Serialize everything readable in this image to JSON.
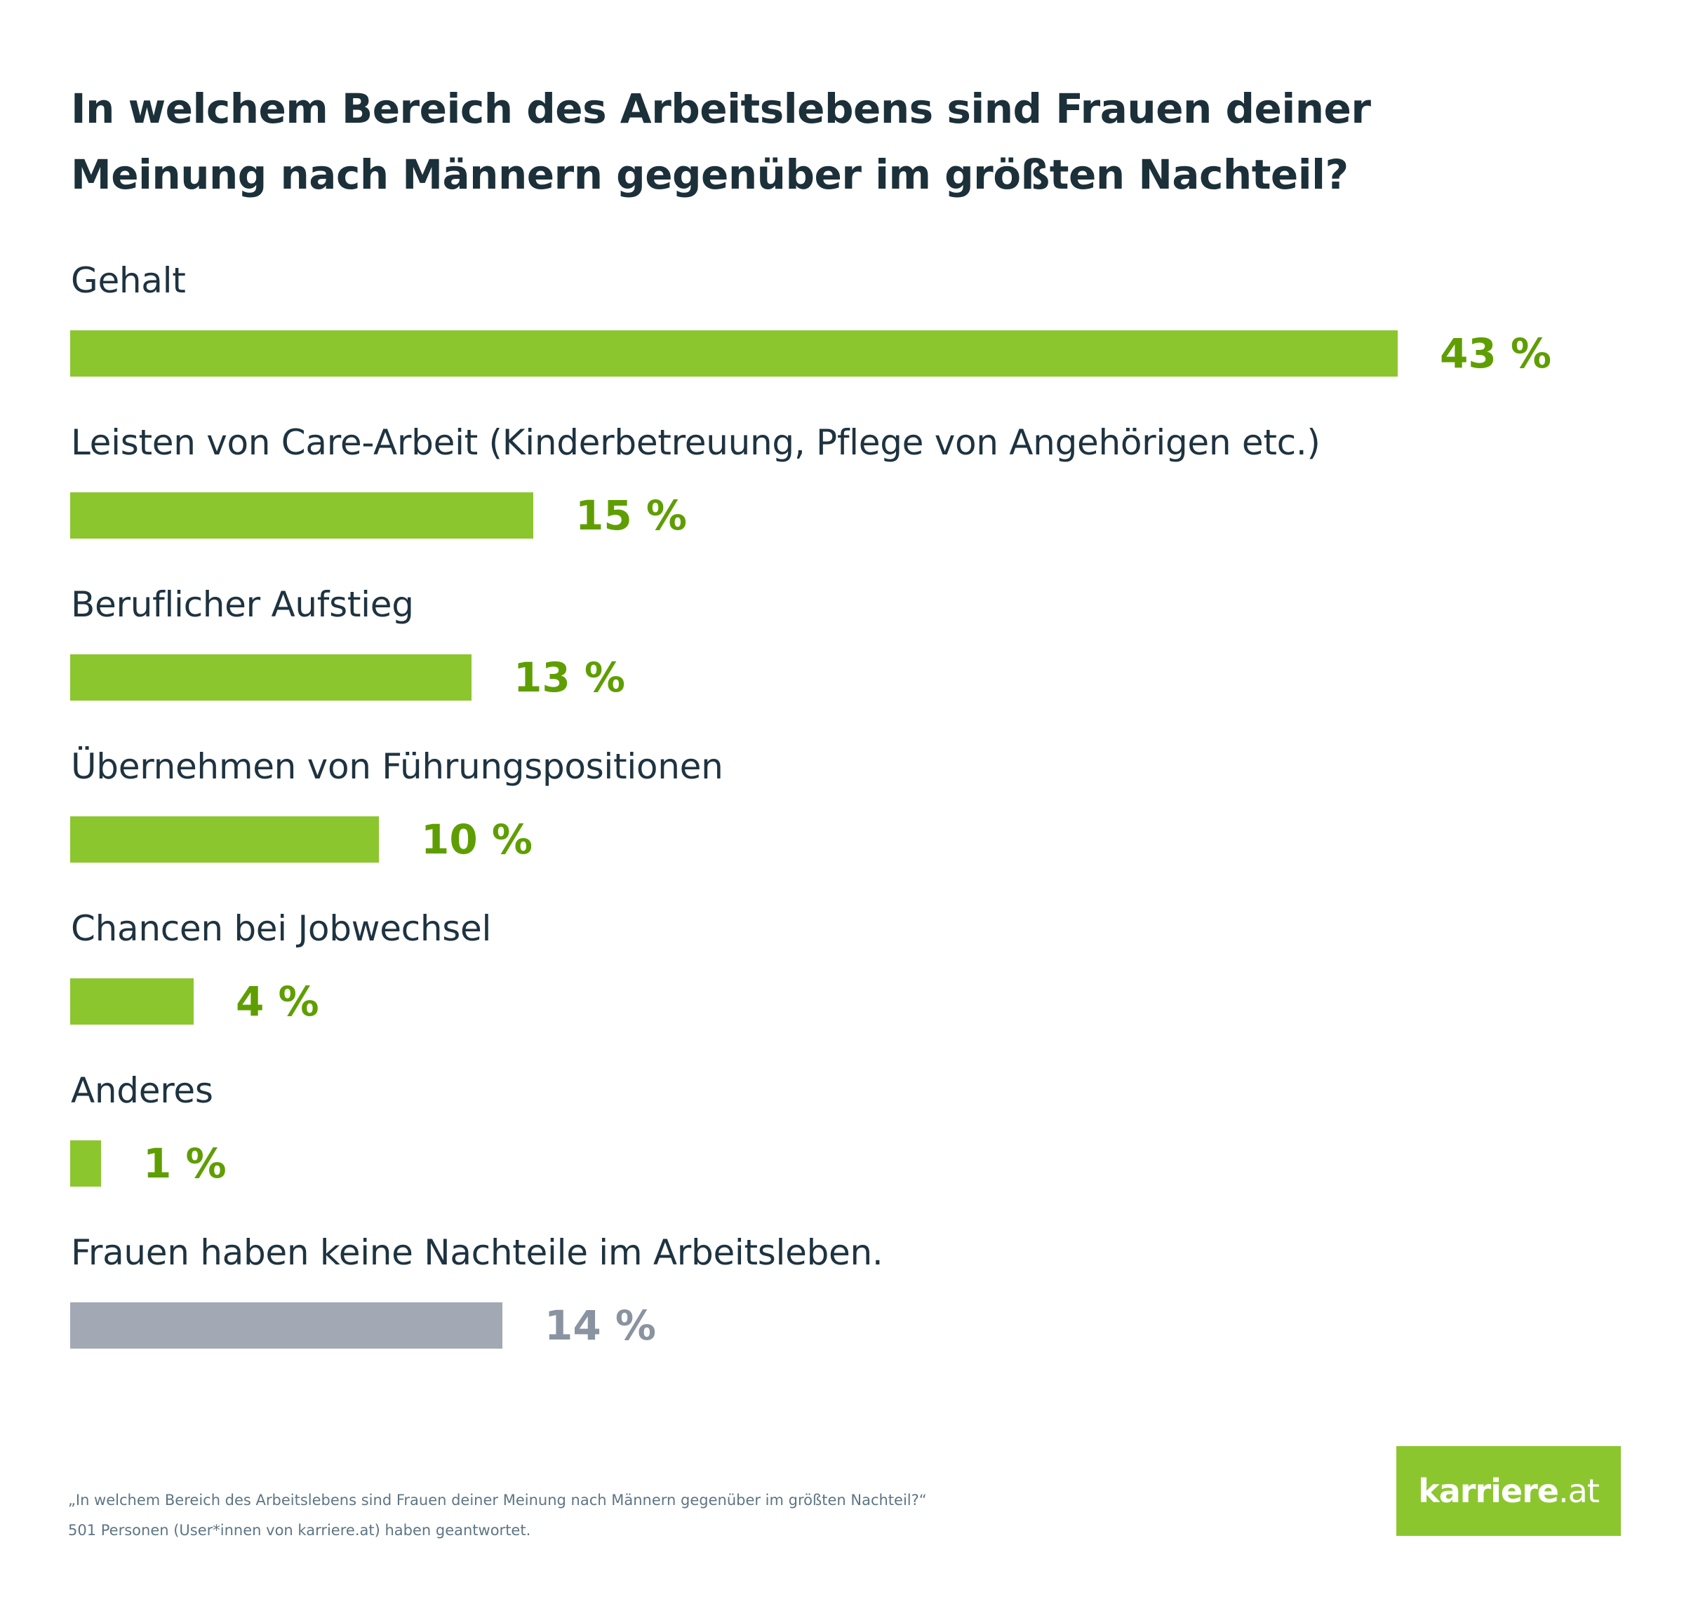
{
  "title": {
    "line1": "In welchem Bereich des Arbeitslebens sind Frauen deiner",
    "line2": "Meinung nach Männern gegenüber im größten Nachteil?"
  },
  "colors": {
    "bar_primary": "#8cc62e",
    "value_primary": "#5f9e00",
    "bar_secondary": "#a2a9b4",
    "value_secondary": "#8a93a0",
    "text": "#1e3340",
    "footer_text": "#5d7584"
  },
  "chart_data": {
    "type": "bar",
    "orientation": "horizontal",
    "title": "In welchem Bereich des Arbeitslebens sind Frauen deiner Meinung nach Männern gegenüber im größten Nachteil?",
    "xlabel": "",
    "ylabel": "",
    "unit": "%",
    "xlim": [
      0,
      43
    ],
    "grid": false,
    "categories": [
      "Gehalt",
      "Leisten von Care-Arbeit (Kinderbetreuung, Pflege von Angehörigen etc.)",
      "Beruflicher Aufstieg",
      "Übernehmen von Führungspositionen",
      "Chancen bei Jobwechsel",
      "Anderes",
      "Frauen haben keine Nachteile im Arbeitsleben."
    ],
    "values": [
      43,
      15,
      13,
      10,
      4,
      1,
      14
    ],
    "value_labels": [
      "43 %",
      "15 %",
      "13 %",
      "10 %",
      "4 %",
      "1 %",
      "14 %"
    ],
    "highlight": [
      "primary",
      "primary",
      "primary",
      "primary",
      "primary",
      "primary",
      "secondary"
    ]
  },
  "footer": {
    "question": "„In welchem Bereich des Arbeitslebens sind Frauen deiner Meinung nach Männern gegenüber im größten Nachteil?“",
    "respondents": "501 Personen (User*innen von karriere.at) haben geantwortet."
  },
  "logo": {
    "brand": "karriere",
    "tld": ".at"
  }
}
